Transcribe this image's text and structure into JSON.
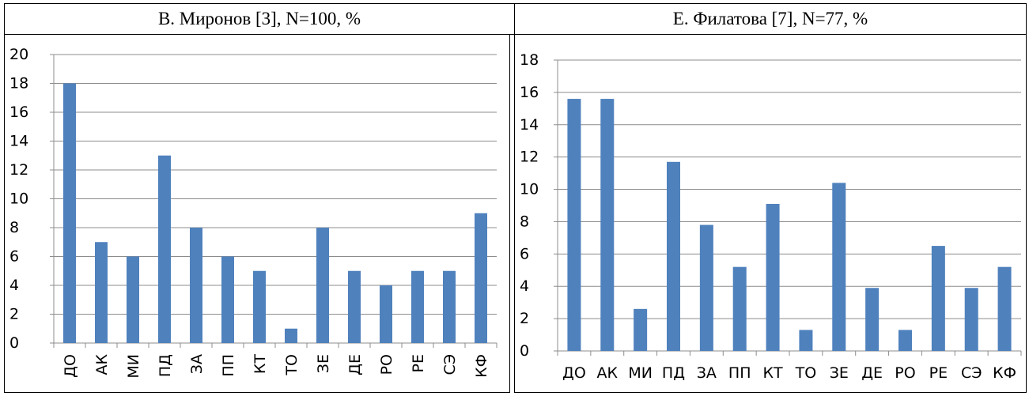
{
  "tables": [
    {
      "header": "В. Миронов [3], N=100, %"
    },
    {
      "header": "Е. Филатова [7], N=77, %"
    }
  ],
  "chart_data": [
    {
      "type": "bar",
      "title": "В. Миронов [3], N=100, %",
      "xlabel": "",
      "ylabel": "",
      "categories": [
        "ДО",
        "АК",
        "МИ",
        "ПД",
        "ЗА",
        "ПП",
        "КТ",
        "ТО",
        "ЗЕ",
        "ДЕ",
        "РО",
        "РЕ",
        "СЭ",
        "КФ"
      ],
      "values": [
        18,
        7,
        6,
        13,
        8,
        6,
        5,
        1,
        8,
        5,
        4,
        5,
        5,
        9
      ],
      "ylim": [
        0,
        20
      ],
      "yticks": [
        "0",
        "2",
        "4",
        "6",
        "8",
        "10",
        "12",
        "14",
        "16",
        "18",
        "20"
      ],
      "tick_label_orientation": "vertical",
      "grid": true,
      "bar_color": "#4F81BD"
    },
    {
      "type": "bar",
      "title": "Е. Филатова [7], N=77, %",
      "xlabel": "",
      "ylabel": "",
      "categories": [
        "ДО",
        "АК",
        "МИ",
        "ПД",
        "ЗА",
        "ПП",
        "КТ",
        "ТО",
        "ЗЕ",
        "ДЕ",
        "РО",
        "РЕ",
        "СЭ",
        "КФ"
      ],
      "values": [
        15.6,
        15.6,
        2.6,
        11.7,
        7.8,
        5.2,
        9.1,
        1.3,
        10.4,
        3.9,
        1.3,
        6.5,
        3.9,
        5.2
      ],
      "ylim": [
        0,
        18
      ],
      "yticks": [
        "0",
        "2",
        "4",
        "6",
        "8",
        "10",
        "12",
        "14",
        "16",
        "18"
      ],
      "tick_label_orientation": "horizontal",
      "grid": true,
      "bar_color": "#4F81BD"
    }
  ]
}
